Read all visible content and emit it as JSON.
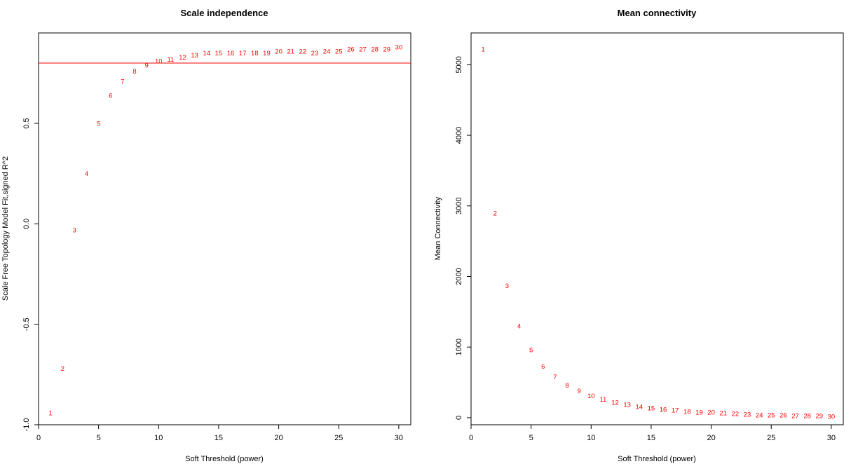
{
  "colors": {
    "points": "#ff0000",
    "threshold_line": "#ff0000",
    "axis": "#000000"
  },
  "chart_data": [
    {
      "type": "scatter",
      "title": "Scale independence",
      "xlabel": "Soft Threshold (power)",
      "ylabel": "Scale Free Topology Model Fit,signed R^2",
      "xlim": [
        0,
        31
      ],
      "ylim": [
        -1.0,
        0.95
      ],
      "xticks": [
        0,
        5,
        10,
        15,
        20,
        25,
        30
      ],
      "yticks": [
        -1.0,
        -0.5,
        0.0,
        0.5
      ],
      "ytick_labels": [
        "-1.0",
        "-0.5",
        "0.0",
        "0.5"
      ],
      "hline": 0.8,
      "grid": false,
      "points": {
        "x": [
          1,
          2,
          3,
          4,
          5,
          6,
          7,
          8,
          9,
          10,
          11,
          12,
          13,
          14,
          15,
          16,
          17,
          18,
          19,
          20,
          21,
          22,
          23,
          24,
          25,
          26,
          27,
          28,
          29,
          30
        ],
        "y": [
          -0.94,
          -0.72,
          -0.03,
          0.25,
          0.5,
          0.64,
          0.71,
          0.76,
          0.79,
          0.81,
          0.82,
          0.83,
          0.84,
          0.85,
          0.85,
          0.85,
          0.85,
          0.85,
          0.85,
          0.86,
          0.86,
          0.86,
          0.85,
          0.86,
          0.86,
          0.87,
          0.87,
          0.87,
          0.87,
          0.88
        ],
        "labels": [
          "1",
          "2",
          "3",
          "4",
          "5",
          "6",
          "7",
          "8",
          "9",
          "10",
          "11",
          "12",
          "13",
          "14",
          "15",
          "16",
          "17",
          "18",
          "19",
          "20",
          "21",
          "22",
          "23",
          "24",
          "25",
          "26",
          "27",
          "28",
          "29",
          "30"
        ]
      }
    },
    {
      "type": "scatter",
      "title": "Mean connectivity",
      "xlabel": "Soft Threshold (power)",
      "ylabel": "Mean Connectivity",
      "xlim": [
        0,
        31
      ],
      "ylim": [
        -100,
        5450
      ],
      "xticks": [
        0,
        5,
        10,
        15,
        20,
        25,
        30
      ],
      "yticks": [
        0,
        1000,
        2000,
        3000,
        4000,
        5000
      ],
      "ytick_labels": [
        "0",
        "1000",
        "2000",
        "3000",
        "4000",
        "5000"
      ],
      "grid": false,
      "points": {
        "x": [
          1,
          2,
          3,
          4,
          5,
          6,
          7,
          8,
          9,
          10,
          11,
          12,
          13,
          14,
          15,
          16,
          17,
          18,
          19,
          20,
          21,
          22,
          23,
          24,
          25,
          26,
          27,
          28,
          29,
          30
        ],
        "y": [
          5220,
          2900,
          1870,
          1300,
          960,
          730,
          580,
          460,
          380,
          310,
          260,
          220,
          190,
          160,
          140,
          120,
          110,
          90,
          80,
          80,
          70,
          60,
          50,
          40,
          40,
          40,
          30,
          30,
          30,
          20
        ],
        "labels": [
          "1",
          "2",
          "3",
          "4",
          "5",
          "6",
          "7",
          "8",
          "9",
          "10",
          "11",
          "12",
          "13",
          "14",
          "15",
          "16",
          "17",
          "18",
          "19",
          "20",
          "21",
          "22",
          "23",
          "24",
          "25",
          "26",
          "27",
          "28",
          "29",
          "30"
        ]
      }
    }
  ]
}
